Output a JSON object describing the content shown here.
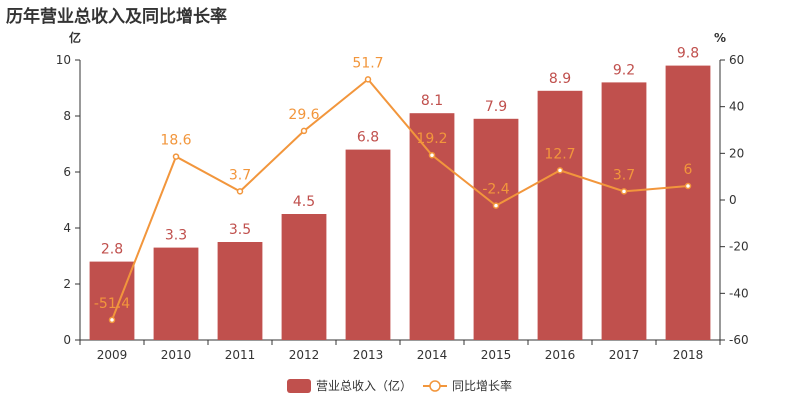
{
  "chart_data": {
    "type": "bar",
    "title": "历年营业总收入及同比增长率",
    "categories": [
      "2009",
      "2010",
      "2011",
      "2012",
      "2013",
      "2014",
      "2015",
      "2016",
      "2017",
      "2018"
    ],
    "series": [
      {
        "name": "营业总收入（亿）",
        "type": "bar",
        "axis": "left",
        "values": [
          2.8,
          3.3,
          3.5,
          4.5,
          6.8,
          8.1,
          7.9,
          8.9,
          9.2,
          9.8
        ],
        "labels": [
          "2.8",
          "3.3",
          "3.5",
          "4.5",
          "6.8",
          "8.1",
          "7.9",
          "8.9",
          "9.2",
          "9.8"
        ]
      },
      {
        "name": "同比增长率",
        "type": "line",
        "axis": "right",
        "values": [
          -51.4,
          18.6,
          3.7,
          29.6,
          51.7,
          19.2,
          -2.4,
          12.7,
          3.7,
          6
        ],
        "labels": [
          "-51.4",
          "18.6",
          "3.7",
          "29.6",
          "51.7",
          "19.2",
          "-2.4",
          "12.7",
          "3.7",
          "6"
        ]
      }
    ],
    "y_left": {
      "unit": "亿",
      "range": [
        0,
        10
      ],
      "ticks": [
        "0",
        "2",
        "4",
        "6",
        "8",
        "10"
      ]
    },
    "y_right": {
      "unit": "%",
      "range": [
        -60,
        60
      ],
      "ticks": [
        "-60",
        "-40",
        "-20",
        "0",
        "20",
        "40",
        "60"
      ]
    },
    "grid": false,
    "legend_position": "bottom-center",
    "colors": {
      "bar": "#c0504d",
      "line": "#f2963c",
      "bar_label": "#c0504d",
      "line_label": "#f2963c",
      "axis": "#333333"
    }
  }
}
